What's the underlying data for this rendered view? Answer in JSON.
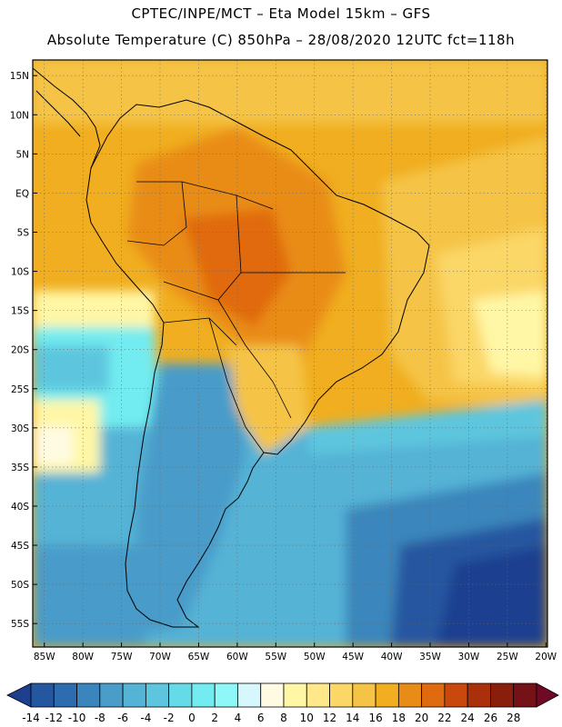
{
  "title_line1": "CPTEC/INPE/MCT –  Eta Model 15km – GFS",
  "title_line2": "Absolute Temperature (C) 850hPa – 28/08/2020 12UTC fct=118h",
  "map": {
    "lat_labels": [
      "15N",
      "10N",
      "5N",
      "EQ",
      "5S",
      "10S",
      "15S",
      "20S",
      "25S",
      "30S",
      "35S",
      "40S",
      "45S",
      "50S",
      "55S"
    ],
    "lon_labels": [
      "85W",
      "80W",
      "75W",
      "70W",
      "65W",
      "60W",
      "55W",
      "50W",
      "45W",
      "40W",
      "35W",
      "30W",
      "25W",
      "20W"
    ],
    "lat_values": [
      15,
      10,
      5,
      0,
      -5,
      -10,
      -15,
      -20,
      -25,
      -30,
      -35,
      -40,
      -45,
      -50,
      -55
    ],
    "lon_values": [
      -85,
      -80,
      -75,
      -70,
      -65,
      -60,
      -55,
      -50,
      -45,
      -40,
      -35,
      -30,
      -25,
      -20
    ]
  },
  "colorbar": {
    "labels": [
      "-14",
      "-12",
      "-10",
      "-8",
      "-6",
      "-4",
      "-2",
      "0",
      "2",
      "4",
      "6",
      "8",
      "10",
      "12",
      "14",
      "16",
      "18",
      "20",
      "22",
      "24",
      "26",
      "28"
    ],
    "colors": [
      "#1e3f8f",
      "#2556a0",
      "#2d6cae",
      "#3a86bc",
      "#4a9cc9",
      "#55b3d6",
      "#5dc6de",
      "#65dbe8",
      "#72ecf0",
      "#8ef7f7",
      "#d6f7fb",
      "#fffbe3",
      "#fff7a6",
      "#ffe88a",
      "#fbd768",
      "#f5c446",
      "#f0ae20",
      "#e98c17",
      "#e06a0e",
      "#c9480c",
      "#a9300b",
      "#8a1e0c",
      "#751217",
      "#6e0a24"
    ]
  }
}
